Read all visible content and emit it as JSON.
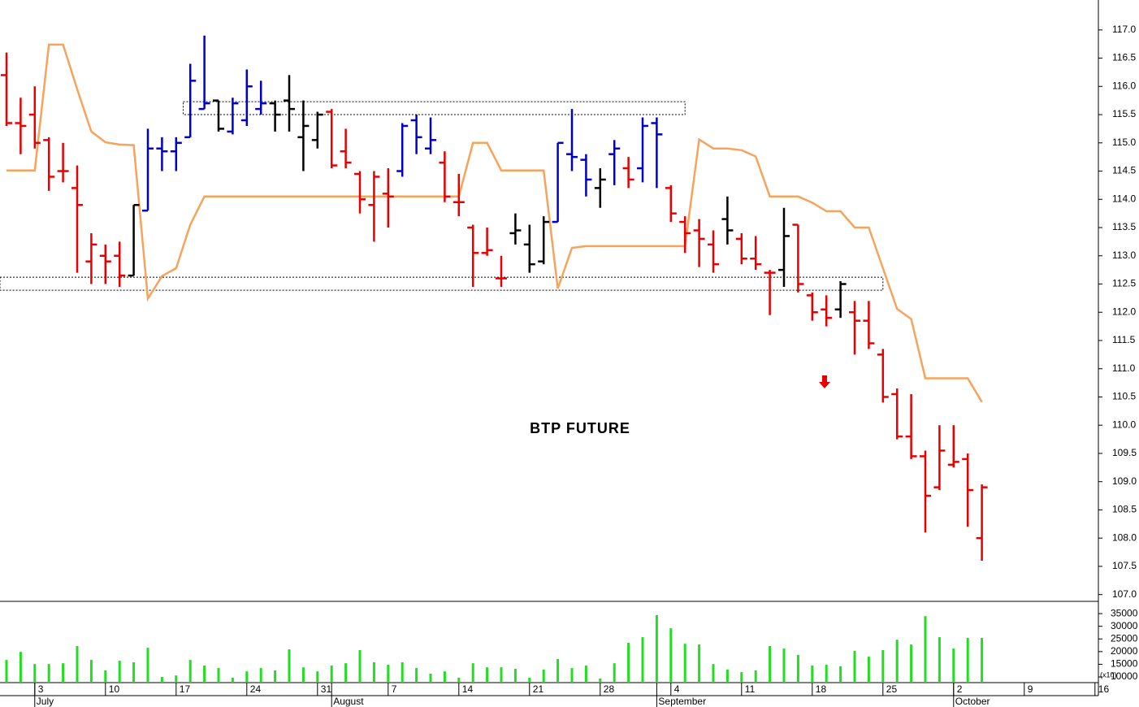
{
  "chart_data": {
    "type": "ohlc",
    "title": "BTP FUTURE",
    "categories": [
      null,
      null,
      "3",
      null,
      null,
      null,
      null,
      "10",
      null,
      null,
      null,
      null,
      "17",
      null,
      null,
      null,
      null,
      "24",
      null,
      null,
      null,
      null,
      "31",
      null,
      null,
      null,
      null,
      "7",
      null,
      null,
      null,
      null,
      "14",
      null,
      null,
      null,
      null,
      "21",
      null,
      null,
      null,
      null,
      "28",
      null,
      null,
      null,
      null,
      "4",
      null,
      null,
      null,
      null,
      "11",
      null,
      null,
      null,
      null,
      "18",
      null,
      null,
      null,
      null,
      "25",
      null,
      null,
      null,
      null,
      "2",
      null,
      null,
      null,
      null,
      "9",
      null,
      null,
      null,
      null,
      "16"
    ],
    "months": [
      null,
      null,
      "July",
      null,
      null,
      null,
      null,
      null,
      null,
      null,
      null,
      null,
      null,
      null,
      null,
      null,
      null,
      null,
      null,
      null,
      null,
      null,
      null,
      "August",
      null,
      null,
      null,
      null,
      null,
      null,
      null,
      null,
      null,
      null,
      null,
      null,
      null,
      null,
      null,
      null,
      null,
      null,
      null,
      null,
      null,
      null,
      "September",
      null,
      null,
      null,
      null,
      null,
      null,
      null,
      null,
      null,
      null,
      null,
      null,
      null,
      null,
      null,
      null,
      null,
      null,
      null,
      null,
      "October",
      null,
      null,
      null,
      null,
      null,
      null,
      null,
      null,
      null,
      null
    ],
    "open": [
      116.2,
      115.35,
      115.5,
      115.05,
      114.5,
      114.2,
      112.9,
      113.0,
      113.0,
      112.65,
      113.8,
      114.9,
      114.85,
      115.1,
      115.6,
      115.75,
      115.2,
      115.4,
      115.6,
      115.7,
      115.75,
      115.1,
      115.05,
      115.55,
      114.85,
      114.45,
      113.9,
      114.1,
      114.5,
      115.4,
      114.9,
      114.65,
      113.95,
      113.5,
      113.05,
      112.6,
      113.4,
      113.2,
      112.9,
      113.6,
      114.8,
      114.7,
      114.2,
      114.8,
      114.55,
      114.55,
      115.35,
      114.2,
      113.6,
      113.45,
      113.2,
      113.65,
      113.3,
      112.95,
      112.7,
      112.75,
      113.55,
      112.3,
      112.05,
      112.05,
      112.0,
      111.85,
      111.25,
      110.55,
      109.8,
      109.45,
      108.9,
      109.3,
      109.4,
      108.0,
      null,
      null,
      null,
      null,
      null,
      null,
      null,
      null
    ],
    "high": [
      116.6,
      115.8,
      116.0,
      115.1,
      115.0,
      114.6,
      113.4,
      113.2,
      113.25,
      113.9,
      115.25,
      115.1,
      115.1,
      116.4,
      116.9,
      115.75,
      115.8,
      116.3,
      116.1,
      115.75,
      116.2,
      115.75,
      115.55,
      115.6,
      115.25,
      114.5,
      114.5,
      114.55,
      115.35,
      115.5,
      115.45,
      114.85,
      114.45,
      113.55,
      113.5,
      113.0,
      113.75,
      113.55,
      113.7,
      115.0,
      115.6,
      114.8,
      114.55,
      115.05,
      114.75,
      115.45,
      115.45,
      114.25,
      113.7,
      113.65,
      113.45,
      114.05,
      113.4,
      113.35,
      112.75,
      113.85,
      113.55,
      112.35,
      112.3,
      112.55,
      112.2,
      112.2,
      111.35,
      110.65,
      110.55,
      109.55,
      110.0,
      110.0,
      109.5,
      108.95,
      null,
      null,
      null,
      null,
      null,
      null,
      null,
      null
    ],
    "low": [
      115.3,
      114.8,
      114.9,
      114.15,
      114.3,
      112.7,
      112.5,
      112.5,
      112.45,
      112.65,
      113.8,
      114.5,
      114.5,
      115.1,
      115.6,
      115.2,
      115.15,
      115.3,
      115.5,
      115.2,
      115.2,
      114.5,
      114.9,
      114.55,
      114.55,
      113.75,
      113.25,
      113.5,
      114.4,
      114.8,
      114.8,
      113.95,
      113.7,
      112.45,
      113.0,
      112.45,
      113.2,
      112.7,
      112.85,
      113.6,
      114.5,
      114.05,
      113.85,
      114.25,
      114.2,
      114.3,
      114.2,
      113.6,
      113.05,
      112.8,
      112.7,
      113.2,
      112.85,
      112.75,
      111.95,
      112.45,
      112.35,
      111.85,
      111.75,
      111.9,
      111.25,
      111.35,
      110.4,
      109.75,
      109.4,
      108.1,
      108.85,
      109.25,
      108.2,
      107.6,
      null,
      null,
      null,
      null,
      null,
      null,
      null,
      null
    ],
    "close": [
      115.35,
      115.3,
      115.0,
      114.4,
      114.5,
      113.9,
      113.2,
      112.9,
      112.65,
      113.9,
      114.9,
      114.85,
      115.0,
      116.1,
      115.7,
      115.25,
      115.7,
      116.0,
      115.7,
      115.5,
      115.6,
      115.3,
      115.5,
      114.6,
      114.65,
      114.0,
      114.4,
      114.05,
      115.3,
      115.1,
      115.05,
      114.05,
      113.95,
      113.05,
      113.1,
      112.6,
      113.45,
      112.85,
      113.6,
      115.0,
      114.75,
      114.35,
      114.35,
      114.9,
      114.35,
      115.3,
      115.15,
      113.75,
      113.4,
      113.3,
      112.85,
      113.45,
      112.95,
      112.85,
      112.7,
      113.35,
      112.5,
      112.0,
      111.9,
      112.5,
      111.85,
      111.45,
      110.5,
      109.8,
      109.45,
      108.75,
      109.55,
      109.35,
      108.85,
      108.9,
      null,
      null,
      null,
      null,
      null,
      null,
      null,
      null
    ],
    "bar_colors": [
      "#e80000",
      "#e80000",
      "#e80000",
      "#e80000",
      "#e80000",
      "#e80000",
      "#e80000",
      "#e80000",
      "#e80000",
      "#000000",
      "#0000c8",
      "#0000c8",
      "#0000c8",
      "#0000c8",
      "#0000c8",
      "#000000",
      "#0000c8",
      "#0000c8",
      "#0000c8",
      "#000000",
      "#000000",
      "#000000",
      "#000000",
      "#e80000",
      "#e80000",
      "#e80000",
      "#e80000",
      "#e80000",
      "#0000c8",
      "#0000c8",
      "#0000c8",
      "#e80000",
      "#e80000",
      "#e80000",
      "#e80000",
      "#e80000",
      "#000000",
      "#000000",
      "#000000",
      "#0000c8",
      "#0000c8",
      "#0000c8",
      "#000000",
      "#0000c8",
      "#e80000",
      "#0000c8",
      "#0000c8",
      "#e80000",
      "#e80000",
      "#e80000",
      "#e80000",
      "#000000",
      "#e80000",
      "#e80000",
      "#e80000",
      "#000000",
      "#e80000",
      "#e80000",
      "#e80000",
      "#000000",
      "#e80000",
      "#e80000",
      "#e80000",
      "#e80000",
      "#e80000",
      "#e80000",
      "#e80000",
      "#e80000",
      "#e80000",
      "#e80000",
      null,
      null,
      null,
      null,
      null,
      null,
      null,
      null
    ],
    "stop_line": {
      "color": "#f7a35c",
      "values": [
        114.51,
        114.51,
        114.51,
        116.74,
        116.74,
        115.95,
        115.2,
        115.01,
        114.97,
        114.96,
        112.24,
        112.64,
        112.78,
        113.55,
        114.05,
        114.05,
        114.05,
        114.05,
        114.05,
        114.05,
        114.05,
        114.05,
        114.05,
        114.05,
        114.05,
        114.05,
        114.05,
        114.05,
        114.05,
        114.05,
        114.05,
        114.05,
        114.05,
        115.0,
        115.0,
        114.51,
        114.51,
        114.51,
        114.51,
        112.42,
        113.14,
        113.17,
        113.17,
        113.17,
        113.17,
        113.17,
        113.17,
        113.17,
        113.17,
        115.06,
        114.9,
        114.9,
        114.87,
        114.76,
        114.05,
        114.05,
        114.05,
        113.94,
        113.79,
        113.79,
        113.5,
        113.5,
        112.78,
        112.06,
        111.88,
        110.83,
        110.83,
        110.83,
        110.83,
        110.41,
        null,
        null,
        null,
        null,
        null,
        null,
        null,
        null
      ]
    },
    "zones": [
      {
        "low": 115.5,
        "high": 115.73,
        "from": 13,
        "to": 48
      },
      {
        "low": 112.39,
        "high": 112.62,
        "from": 0,
        "to": 62
      }
    ],
    "ylim": [
      106.88,
      117.53
    ],
    "yticks": [
      {
        "value": 107,
        "label": "107.0"
      },
      {
        "value": 107.5,
        "label": "107.5"
      },
      {
        "value": 108,
        "label": "108.0"
      },
      {
        "value": 108.5,
        "label": "108.5"
      },
      {
        "value": 109,
        "label": "109.0"
      },
      {
        "value": 109.5,
        "label": "109.5"
      },
      {
        "value": 110,
        "label": "110.0"
      },
      {
        "value": 110.5,
        "label": "110.5"
      },
      {
        "value": 111,
        "label": "111.0"
      },
      {
        "value": 111.5,
        "label": "111.5"
      },
      {
        "value": 112,
        "label": "112.0"
      },
      {
        "value": 112.5,
        "label": "112.5"
      },
      {
        "value": 113,
        "label": "113.0"
      },
      {
        "value": 113.5,
        "label": "113.5"
      },
      {
        "value": 114,
        "label": "114.0"
      },
      {
        "value": 114.5,
        "label": "114.5"
      },
      {
        "value": 115,
        "label": "115.0"
      },
      {
        "value": 115.5,
        "label": "115.5"
      },
      {
        "value": 116,
        "label": "116.0"
      },
      {
        "value": 116.5,
        "label": "116.5"
      },
      {
        "value": 117,
        "label": "117.0"
      }
    ],
    "volume": {
      "color": "#22dd22",
      "unit_note": "(x10)",
      "values": [
        16700,
        19900,
        15100,
        15100,
        15400,
        22200,
        16700,
        12600,
        16400,
        15800,
        21500,
        10000,
        10600,
        16700,
        14500,
        13500,
        9700,
        12200,
        13500,
        12600,
        20900,
        13800,
        12200,
        14500,
        15400,
        20600,
        15800,
        14800,
        15800,
        13500,
        11300,
        12200,
        9700,
        15400,
        13800,
        13800,
        13200,
        9700,
        12900,
        17100,
        13500,
        14500,
        9400,
        15400,
        23500,
        25700,
        34400,
        29200,
        23100,
        22800,
        15100,
        12900,
        11900,
        12600,
        22200,
        21200,
        18700,
        14500,
        14800,
        14200,
        20300,
        18000,
        20600,
        24700,
        22800,
        34000,
        25700,
        21200,
        25400,
        25400,
        null,
        null,
        null,
        null,
        null,
        null,
        null,
        null
      ],
      "ylim": [
        7760,
        39200
      ],
      "yticks": [
        10000,
        15000,
        20000,
        25000,
        30000,
        35000
      ]
    }
  }
}
